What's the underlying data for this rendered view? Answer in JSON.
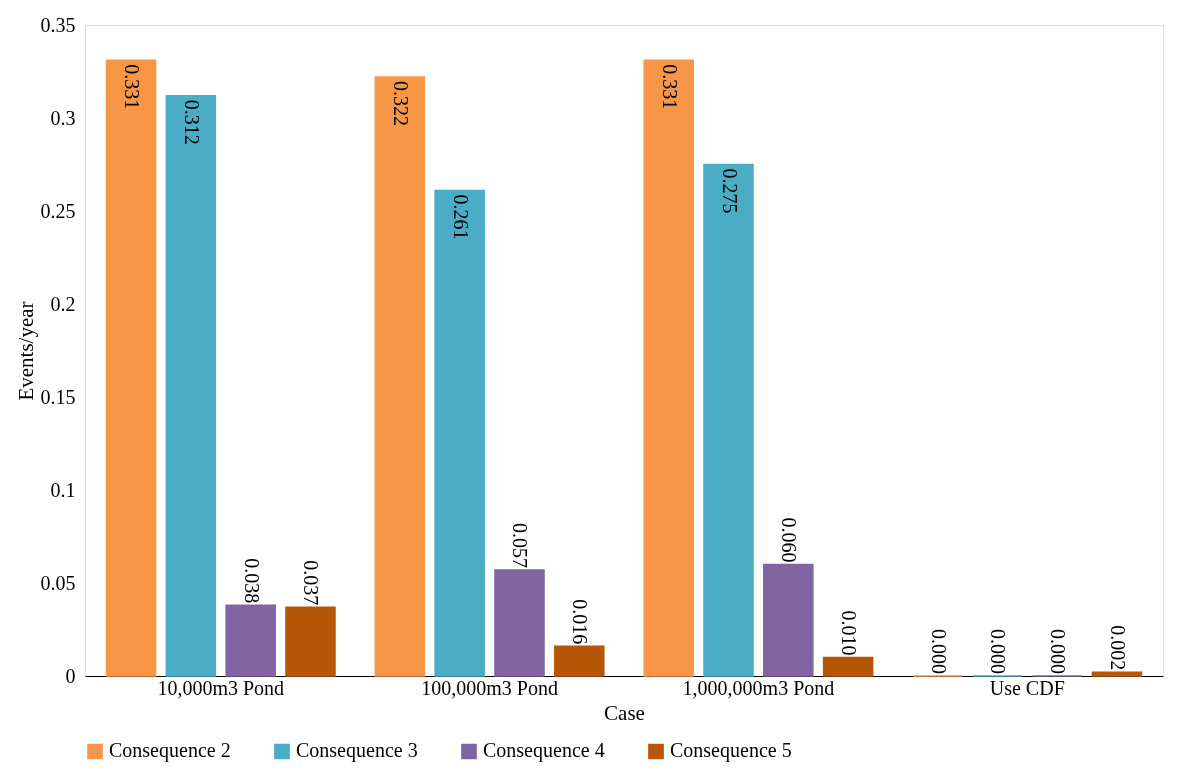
{
  "chart_data": {
    "type": "bar",
    "xlabel": "Case",
    "ylabel": "Events/year",
    "categories": [
      "10,000m3 Pond",
      "100,000m3 Pond",
      "1,000,000m3 Pond",
      "Use CDF"
    ],
    "series": [
      {
        "name": "Consequence 2",
        "color": "#f79646",
        "values": [
          0.331,
          0.322,
          0.331,
          0.0
        ],
        "value_labels": [
          "0.331",
          "0.322",
          "0.331",
          "0.000"
        ]
      },
      {
        "name": "Consequence 3",
        "color": "#4bacc6",
        "values": [
          0.312,
          0.261,
          0.275,
          0.0
        ],
        "value_labels": [
          "0.312",
          "0.261",
          "0.275",
          "0.000"
        ]
      },
      {
        "name": "Consequence 4",
        "color": "#8064a2",
        "values": [
          0.038,
          0.057,
          0.06,
          0.0
        ],
        "value_labels": [
          "0.038",
          "0.057",
          "0.060",
          "0.000"
        ]
      },
      {
        "name": "Consequence 5",
        "color": "#b65708",
        "values": [
          0.037,
          0.016,
          0.01,
          0.002
        ],
        "value_labels": [
          "0.037",
          "0.016",
          "0.010",
          "0.002"
        ]
      }
    ],
    "ylim": [
      0,
      0.35
    ],
    "yticks": [
      0,
      0.05,
      0.1,
      0.15,
      0.2,
      0.25,
      0.3,
      0.35
    ],
    "grid": false,
    "legend": "bottom"
  }
}
